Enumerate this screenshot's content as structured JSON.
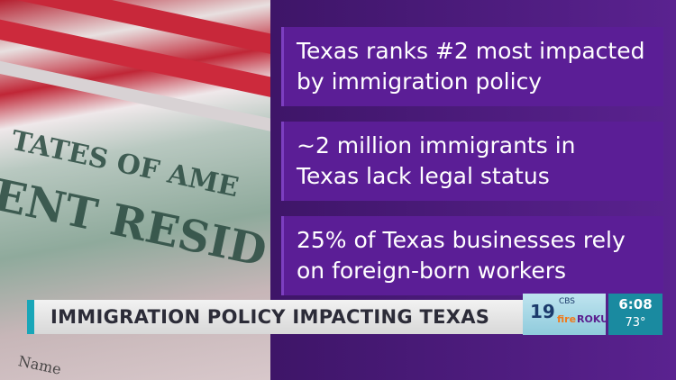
{
  "background_photo": {
    "texts": [
      "TATES OF AME",
      "ENT RESID",
      "Name"
    ]
  },
  "facts": [
    {
      "lines": [
        "Texas ranks #2 most impacted",
        "by immigration policy"
      ]
    },
    {
      "lines": [
        "~2 million immigrants in",
        "Texas lack legal status"
      ]
    },
    {
      "lines": [
        "25% of Texas businesses rely",
        "on foreign-born workers"
      ]
    }
  ],
  "lower_third": {
    "headline": "IMMIGRATION POLICY IMPACTING TEXAS"
  },
  "bug": {
    "channel": "19",
    "network": "CBS",
    "partners": [
      "fire",
      "ROKU"
    ]
  },
  "weather": {
    "time": "6:08",
    "temperature": "73°"
  }
}
